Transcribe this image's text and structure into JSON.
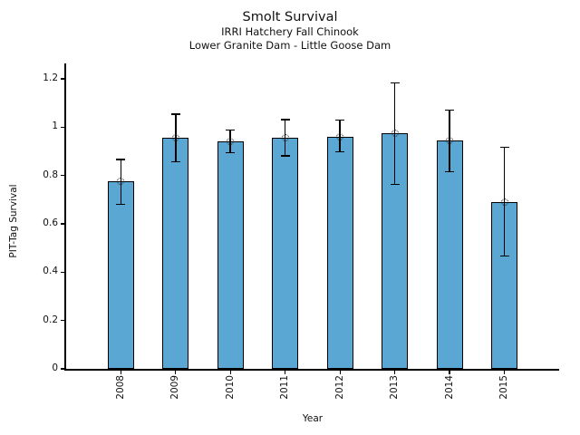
{
  "header": {
    "title": "Smolt Survival",
    "subtitle1": "IRRI Hatchery Fall Chinook",
    "subtitle2": "Lower Granite Dam - Little Goose Dam"
  },
  "chart_data": {
    "type": "bar",
    "title": "Smolt Survival",
    "subtitle": [
      "IRRI Hatchery Fall Chinook",
      "Lower Granite Dam - Little Goose Dam"
    ],
    "xlabel": "Year",
    "ylabel": "PIT-Tag Survival",
    "categories": [
      "2008",
      "2009",
      "2010",
      "2011",
      "2012",
      "2013",
      "2014",
      "2015"
    ],
    "values": [
      0.775,
      0.955,
      0.942,
      0.955,
      0.96,
      0.976,
      0.945,
      0.69
    ],
    "error_low": [
      0.68,
      0.856,
      0.895,
      0.882,
      0.898,
      0.764,
      0.816,
      0.466
    ],
    "error_high": [
      0.866,
      1.054,
      0.989,
      1.032,
      1.03,
      1.184,
      1.07,
      0.916
    ],
    "yticks": [
      0,
      0.2,
      0.4,
      0.6,
      0.8,
      1.0,
      1.2
    ],
    "ytick_labels": [
      "0",
      "0.2",
      "0.4",
      "0.6",
      "0.8",
      "1",
      "1.2"
    ],
    "ylim": [
      0,
      1.26
    ],
    "grid": false,
    "legend": "none",
    "bar_color": "#5BA7D3",
    "bar_edge_color": "#000000",
    "error_color": "#000000",
    "marker": "open-circle-dotted-at-bar-top"
  }
}
